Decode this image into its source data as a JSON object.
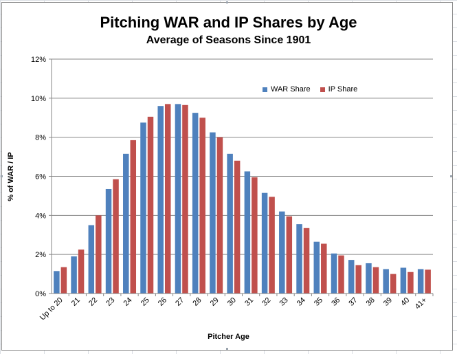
{
  "chart_data": {
    "type": "bar",
    "title": "Pitching WAR and IP Shares by Age",
    "subtitle": "Average of Seasons Since 1901",
    "xlabel": "Pitcher Age",
    "ylabel": "% of WAR / IP",
    "ylim": [
      0,
      12
    ],
    "yticks": [
      "0%",
      "2%",
      "4%",
      "6%",
      "8%",
      "10%",
      "12%"
    ],
    "grid": true,
    "legend_position": "top-right",
    "categories": [
      "Up to 20",
      "21",
      "22",
      "23",
      "24",
      "25",
      "26",
      "27",
      "28",
      "29",
      "30",
      "31",
      "32",
      "33",
      "34",
      "35",
      "36",
      "37",
      "38",
      "39",
      "40",
      "41+"
    ],
    "series": [
      {
        "name": "WAR Share",
        "color": "#4f81bd",
        "values": [
          1.15,
          1.9,
          3.5,
          5.35,
          7.15,
          8.75,
          9.6,
          9.7,
          9.25,
          8.25,
          7.15,
          6.25,
          5.15,
          4.2,
          3.55,
          2.65,
          2.05,
          1.72,
          1.55,
          1.25,
          1.32,
          1.25
        ]
      },
      {
        "name": "IP Share",
        "color": "#c0504d",
        "values": [
          1.35,
          2.25,
          4.0,
          5.85,
          7.85,
          9.05,
          9.7,
          9.65,
          9.0,
          8.0,
          6.8,
          5.95,
          4.95,
          3.95,
          3.35,
          2.55,
          1.95,
          1.45,
          1.35,
          1.0,
          1.1,
          1.22
        ]
      }
    ]
  }
}
